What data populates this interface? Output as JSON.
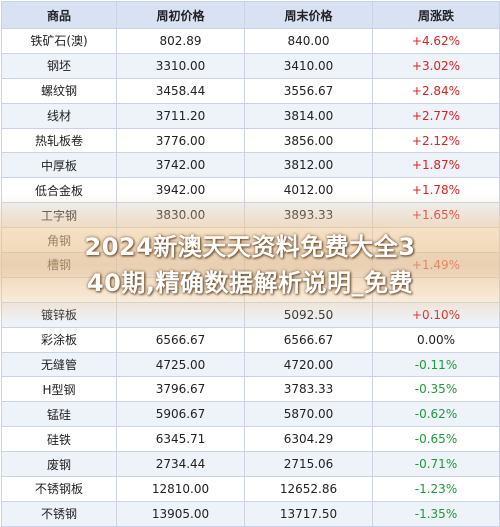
{
  "table": {
    "headers": [
      "商品",
      "周初价格",
      "周末价格",
      "周涨跌"
    ],
    "rows": [
      {
        "name": "铁矿石(澳)",
        "open": "802.89",
        "close": "840.00",
        "change": "+4.62%",
        "dir": "pos"
      },
      {
        "name": "钢坯",
        "open": "3310.00",
        "close": "3410.00",
        "change": "+3.02%",
        "dir": "pos"
      },
      {
        "name": "螺纹钢",
        "open": "3458.44",
        "close": "3556.67",
        "change": "+2.84%",
        "dir": "pos"
      },
      {
        "name": "线材",
        "open": "3711.20",
        "close": "3814.00",
        "change": "+2.77%",
        "dir": "pos"
      },
      {
        "name": "热轧板卷",
        "open": "3776.00",
        "close": "3856.00",
        "change": "+2.12%",
        "dir": "pos"
      },
      {
        "name": "中厚板",
        "open": "3742.00",
        "close": "3812.00",
        "change": "+1.87%",
        "dir": "pos"
      },
      {
        "name": "低合金板",
        "open": "3942.00",
        "close": "4012.00",
        "change": "+1.78%",
        "dir": "pos"
      },
      {
        "name": "工字钢",
        "open": "3830.00",
        "close": "3893.33",
        "change": "+1.65%",
        "dir": "pos"
      },
      {
        "name": "角钢",
        "open": "",
        "close": "",
        "change": "",
        "dir": "pos"
      },
      {
        "name": "槽钢",
        "open": "",
        "close": "",
        "change": "+1.49%",
        "dir": "pos"
      },
      {
        "name": "",
        "open": "",
        "close": "",
        "change": "",
        "dir": "pos"
      },
      {
        "name": "镀锌板",
        "open": "",
        "close": "5092.50",
        "change": "+0.10%",
        "dir": "pos"
      },
      {
        "name": "彩涂板",
        "open": "6566.67",
        "close": "6566.67",
        "change": "0.00%",
        "dir": "zero"
      },
      {
        "name": "无缝管",
        "open": "4725.00",
        "close": "4720.00",
        "change": "-0.11%",
        "dir": "neg"
      },
      {
        "name": "H型钢",
        "open": "3796.67",
        "close": "3783.33",
        "change": "-0.35%",
        "dir": "neg"
      },
      {
        "name": "锰硅",
        "open": "5906.67",
        "close": "5870.00",
        "change": "-0.62%",
        "dir": "neg"
      },
      {
        "name": "硅铁",
        "open": "6345.71",
        "close": "6304.29",
        "change": "-0.65%",
        "dir": "neg"
      },
      {
        "name": "废钢",
        "open": "2734.44",
        "close": "2715.06",
        "change": "-0.71%",
        "dir": "neg"
      },
      {
        "name": "不锈钢板",
        "open": "12810.00",
        "close": "12652.86",
        "change": "-1.23%",
        "dir": "neg"
      },
      {
        "name": "不锈钢",
        "open": "13905.00",
        "close": "13717.50",
        "change": "-1.35%",
        "dir": "neg"
      }
    ]
  },
  "watermark": {
    "line1": "2024新澳天天资料免费大全3",
    "line2": "40期,精确数据解析说明_免费"
  },
  "colors": {
    "up": "#e02020",
    "down": "#1f9a3a",
    "header_bg": "#d9e2f3"
  }
}
